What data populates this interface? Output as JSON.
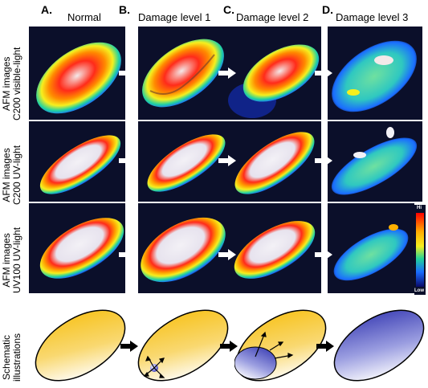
{
  "panels": [
    {
      "letter": "A.",
      "title": "Normal"
    },
    {
      "letter": "B.",
      "title": "Damage level 1"
    },
    {
      "letter": "C.",
      "title": "Damage level 2"
    },
    {
      "letter": "D.",
      "title": "Damage level 3"
    }
  ],
  "rows": [
    {
      "label_line1": "AFM images",
      "label_line2": "C200 visible-light"
    },
    {
      "label_line1": "AFM images",
      "label_line2": "C200 UV-light"
    },
    {
      "label_line1": "AFM images",
      "label_line2": "UV100 UV-light"
    },
    {
      "label_line1": "Schematic",
      "label_line2": "illustrations"
    }
  ],
  "scale": {
    "hi": "Hi",
    "low": "Low"
  },
  "colors": {
    "background_afm": "#0b0f2a",
    "schematic_yellow": "#f7c21b",
    "schematic_blue": "#4a4fbf"
  }
}
